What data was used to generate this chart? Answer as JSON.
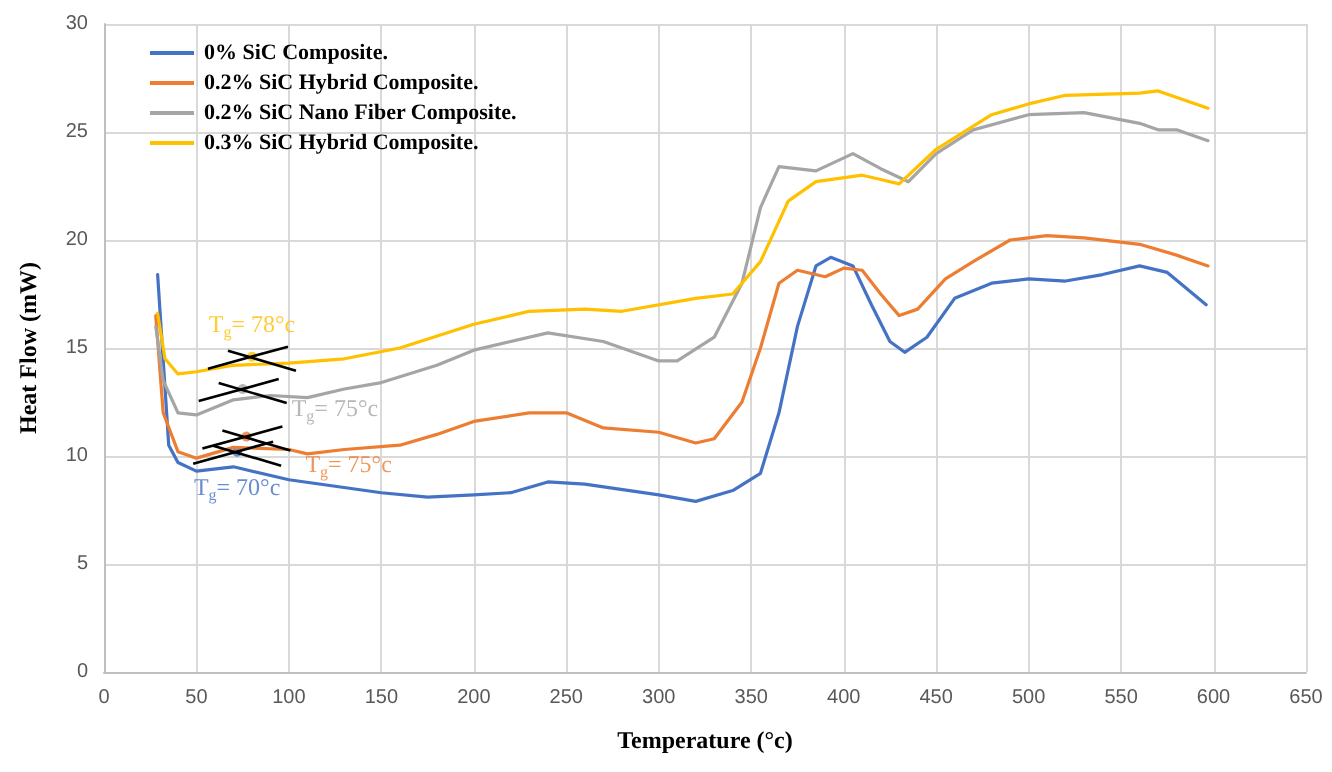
{
  "chart_data": {
    "type": "line",
    "xlabel": "Temperature (°c)",
    "ylabel": "Heat Flow (mW)",
    "xlim": [
      0,
      650
    ],
    "xticks": [
      0,
      50,
      100,
      150,
      200,
      250,
      300,
      350,
      400,
      450,
      500,
      550,
      600,
      650
    ],
    "ylim": [
      0,
      30
    ],
    "yticks": [
      0,
      5,
      10,
      15,
      20,
      25,
      30
    ],
    "grid": true,
    "legend": "top left",
    "marker": "none",
    "line_style": "solid",
    "series": [
      {
        "name": "0% SiC Composite.",
        "color": "#4472c4",
        "x": [
          29,
          35,
          40,
          50,
          70,
          100,
          150,
          175,
          200,
          220,
          240,
          260,
          300,
          320,
          340,
          355,
          365,
          375,
          385,
          393,
          405,
          415,
          425,
          433,
          445,
          460,
          480,
          500,
          520,
          540,
          560,
          575,
          596
        ],
        "values": [
          18.4,
          10.5,
          9.7,
          9.3,
          9.5,
          8.9,
          8.3,
          8.1,
          8.2,
          8.3,
          8.8,
          8.7,
          8.2,
          7.9,
          8.4,
          9.2,
          12,
          16,
          18.8,
          19.2,
          18.8,
          17,
          15.3,
          14.8,
          15.5,
          17.3,
          18,
          18.2,
          18.1,
          18.4,
          18.8,
          18.5,
          17
        ]
      },
      {
        "name": "0.2% SiC Hybrid Composite.",
        "color": "#ed7d31",
        "x": [
          28,
          32,
          40,
          50,
          70,
          100,
          110,
          130,
          160,
          180,
          200,
          230,
          250,
          270,
          300,
          320,
          330,
          345,
          355,
          365,
          375,
          390,
          400,
          410,
          420,
          430,
          440,
          455,
          470,
          490,
          510,
          530,
          560,
          580,
          597
        ],
        "values": [
          16.5,
          12,
          10.2,
          9.9,
          10.4,
          10.3,
          10.1,
          10.3,
          10.5,
          11,
          11.6,
          12,
          12,
          11.3,
          11.1,
          10.6,
          10.8,
          12.5,
          15,
          18,
          18.6,
          18.3,
          18.7,
          18.6,
          17.5,
          16.5,
          16.8,
          18.2,
          19,
          20,
          20.2,
          20.1,
          19.8,
          19.3,
          18.8
        ]
      },
      {
        "name": "0.2% SiC Nano Fiber Composite.",
        "color": "#a5a5a5",
        "x": [
          28,
          32,
          40,
          50,
          70,
          90,
          110,
          130,
          150,
          180,
          200,
          240,
          270,
          300,
          310,
          330,
          345,
          355,
          365,
          385,
          405,
          420,
          435,
          450,
          470,
          500,
          530,
          560,
          570,
          580,
          597
        ],
        "values": [
          16,
          13.5,
          12,
          11.9,
          12.6,
          12.8,
          12.7,
          13.1,
          13.4,
          14.2,
          14.9,
          15.7,
          15.3,
          14.4,
          14.4,
          15.5,
          18,
          21.5,
          23.4,
          23.2,
          24,
          23.3,
          22.7,
          24,
          25.1,
          25.8,
          25.9,
          25.4,
          25.1,
          25.1,
          24.6
        ]
      },
      {
        "name": "0.3% SiC Hybrid Composite.",
        "color": "#ffc000",
        "x": [
          29,
          33,
          40,
          50,
          70,
          100,
          130,
          160,
          200,
          230,
          260,
          280,
          320,
          340,
          355,
          370,
          385,
          410,
          420,
          430,
          450,
          480,
          500,
          520,
          560,
          570,
          597
        ],
        "values": [
          16.6,
          14.5,
          13.8,
          13.9,
          14.2,
          14.3,
          14.5,
          15,
          16.1,
          16.7,
          16.8,
          16.7,
          17.3,
          17.5,
          19,
          21.8,
          22.7,
          23,
          22.8,
          22.6,
          24.2,
          25.8,
          26.3,
          26.7,
          26.8,
          26.9,
          26.1
        ]
      }
    ],
    "annotations": [
      {
        "text": "T$_{g}$= 70°c",
        "x": 72,
        "y": 10.2
      },
      {
        "text": "T$_{g}$= 75°c",
        "x": 77,
        "y": 10.9
      },
      {
        "text": "T$_{g}$= 75°c",
        "x": 75,
        "y": 13.1
      },
      {
        "text": "T$_{g}$= 78°c",
        "x": 80,
        "y": 14.6
      }
    ]
  }
}
